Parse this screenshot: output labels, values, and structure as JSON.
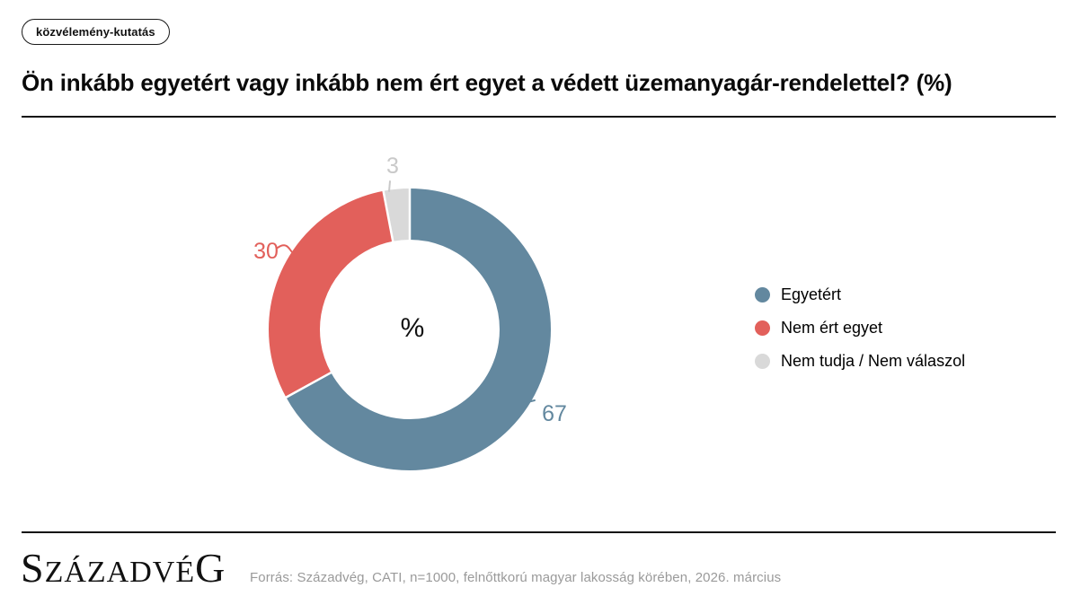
{
  "badge": {
    "label": "közvélemény-kutatás"
  },
  "title": "Ön inkább egyetért vagy inkább nem ért egyet a védett üzemanyagár-rendelettel? (%)",
  "chart_data": {
    "type": "pie",
    "donut": true,
    "title": "Ön inkább egyetért vagy inkább nem ért egyet a védett üzemanyagár-rendelettel? (%)",
    "categories": [
      "Egyetért",
      "Nem ért egyet",
      "Nem tudja / Nem válaszol"
    ],
    "values": [
      67,
      30,
      3
    ],
    "colors": [
      "#63889f",
      "#e2605b",
      "#d9d9d9"
    ],
    "label_colors": [
      "#63889f",
      "#e2605b",
      "#c9c9c9"
    ],
    "unit": "%",
    "center_label": "%",
    "start_angle_deg": 0,
    "direction": "clockwise",
    "legend_position": "right"
  },
  "legend": {
    "items": [
      {
        "label": "Egyetért",
        "color": "#63889f"
      },
      {
        "label": "Nem ért egyet",
        "color": "#e2605b"
      },
      {
        "label": "Nem tudja / Nem válaszol",
        "color": "#d9d9d9"
      }
    ]
  },
  "footer": {
    "logo": {
      "first": "S",
      "middle": "ZÁZADVÉ",
      "last": "G"
    },
    "source": "Forrás: Századvég, CATI, n=1000, felnőttkorú magyar lakosság körében, 2026. március"
  }
}
